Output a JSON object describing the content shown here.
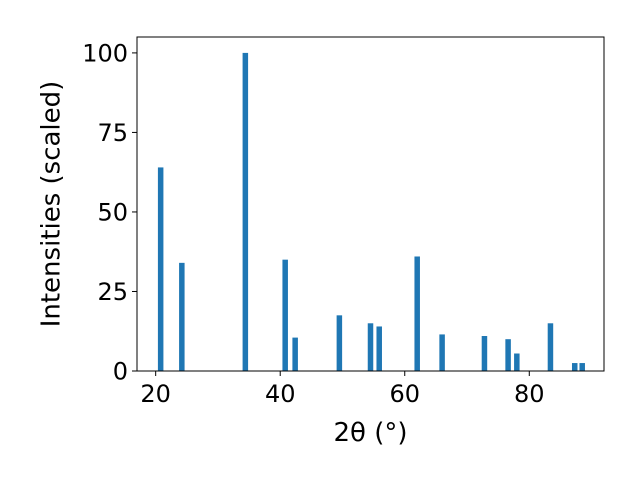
{
  "chart_data": {
    "type": "bar",
    "x": [
      20.8,
      24.2,
      34.4,
      40.8,
      42.4,
      49.5,
      54.5,
      55.9,
      62.0,
      66.0,
      72.8,
      76.6,
      78.0,
      83.4,
      87.3,
      88.5
    ],
    "values": [
      64,
      34,
      100,
      35,
      10.5,
      17.5,
      15,
      14,
      36,
      11.5,
      11,
      10,
      5.5,
      15,
      2.5,
      2.5
    ],
    "xlabel": "2θ (°)",
    "ylabel": "Intensities (scaled)",
    "xlim": [
      17.0,
      92.0
    ],
    "ylim": [
      0,
      105
    ],
    "xticks": [
      "20",
      "40",
      "60",
      "80"
    ],
    "yticks": [
      "0",
      "25",
      "50",
      "75",
      "100"
    ],
    "xtick_values": [
      20,
      40,
      60,
      80
    ],
    "ytick_values": [
      0,
      25,
      50,
      75,
      100
    ],
    "bar_color": "#1f77b4",
    "grid": false,
    "legend": "none"
  }
}
